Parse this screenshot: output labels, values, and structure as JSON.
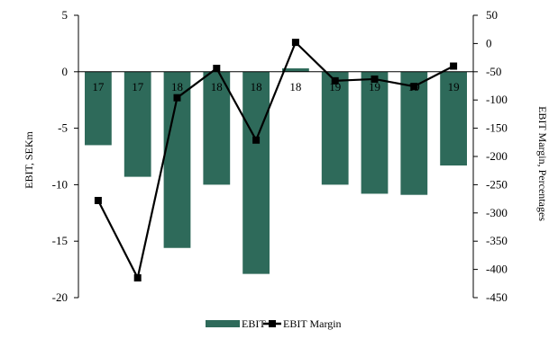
{
  "chart_data": {
    "type": "bar",
    "categories": [
      "17",
      "17",
      "18",
      "18",
      "18",
      "18",
      "19",
      "19",
      "19",
      "19"
    ],
    "ylabel": "EBIT, SEKm",
    "y2label": "EBIT Margin, Percentages",
    "ylim": [
      -20,
      5
    ],
    "y2lim": [
      -450,
      50
    ],
    "yticks": [
      "5",
      "0",
      "-5",
      "-10",
      "-15",
      "-20"
    ],
    "y2ticks": [
      "50",
      "0",
      "-50",
      "-100",
      "-150",
      "-200",
      "-250",
      "-300",
      "-350",
      "-400",
      "-450"
    ],
    "grid": false,
    "legend_position": "bottom",
    "series": [
      {
        "name": "EBIT",
        "type": "bar",
        "axis": "left",
        "color": "#2e6a5a",
        "values": [
          -6.5,
          -9.3,
          -15.6,
          -10.0,
          -17.9,
          0.3,
          -10.0,
          -10.8,
          -10.9,
          -8.3
        ]
      },
      {
        "name": "EBIT Margin",
        "type": "line",
        "axis": "right",
        "color": "#000000",
        "values": [
          -278,
          -415,
          -96,
          -44,
          -171,
          2,
          -66,
          -63,
          -76,
          -40
        ]
      }
    ]
  }
}
